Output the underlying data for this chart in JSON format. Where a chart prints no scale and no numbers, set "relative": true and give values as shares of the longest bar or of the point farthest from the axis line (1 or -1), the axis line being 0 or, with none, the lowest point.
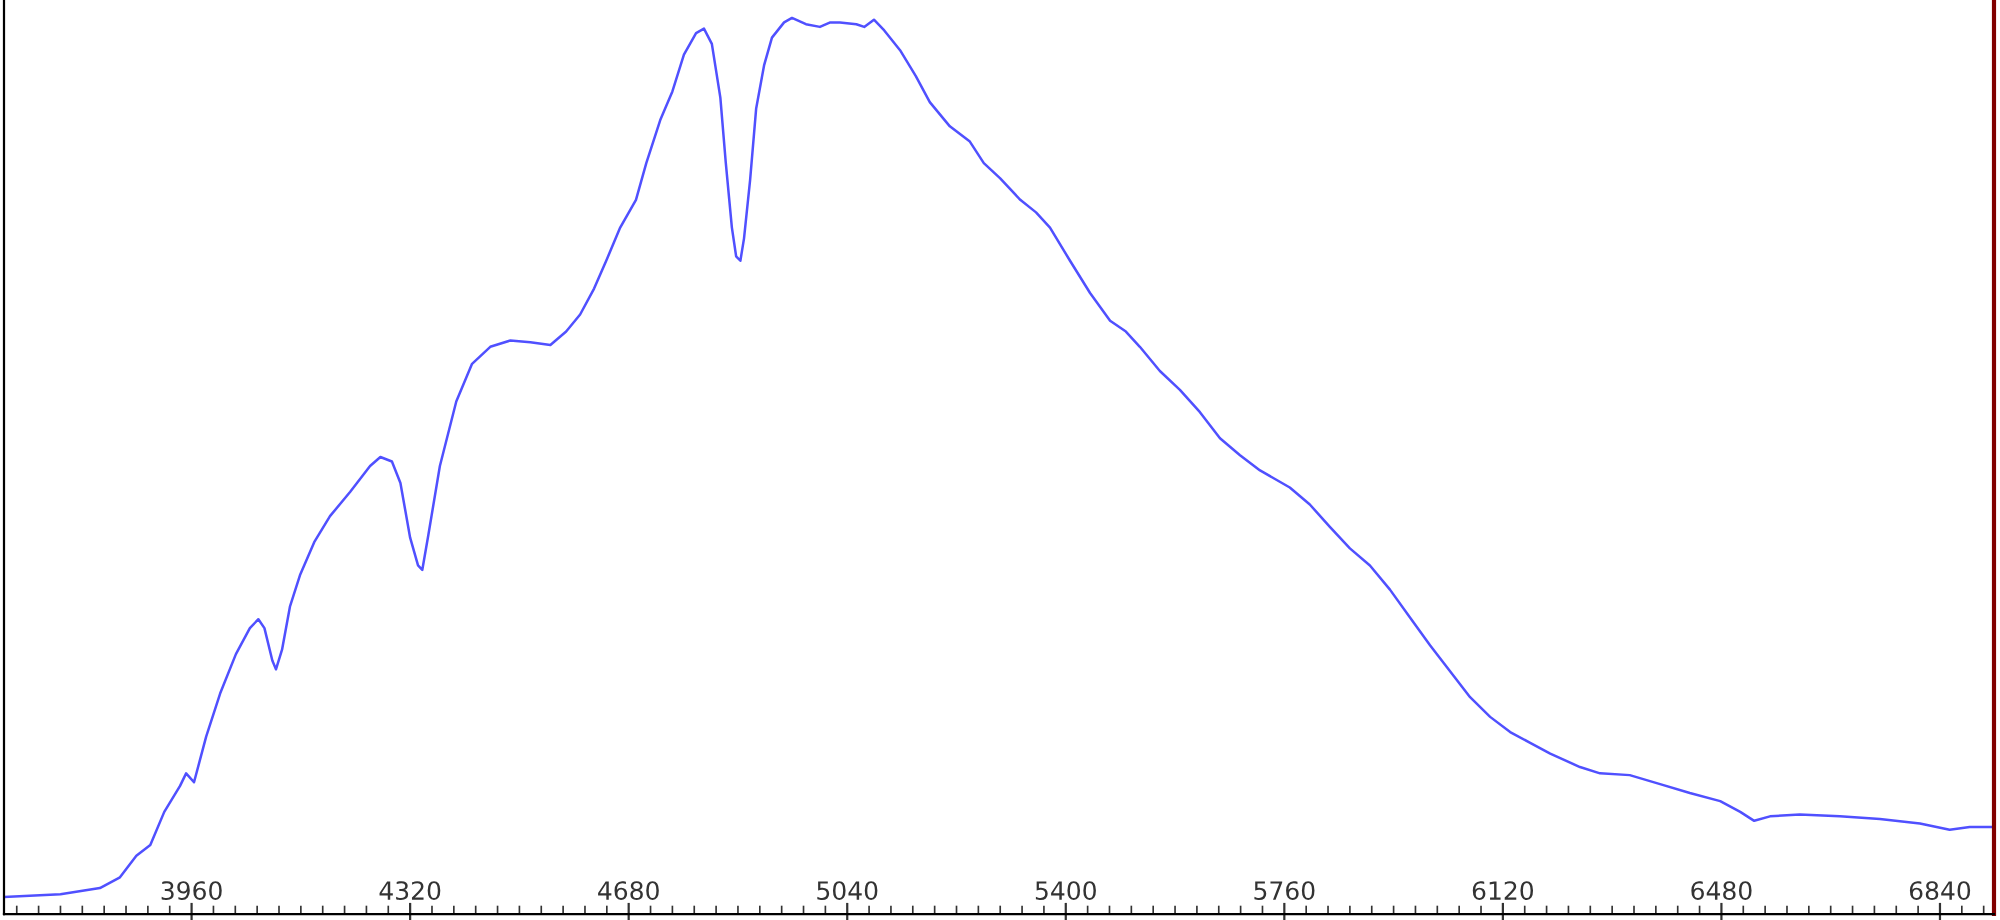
{
  "chart_data": {
    "type": "line",
    "relative": true,
    "xlim": [
      3651,
      6929
    ],
    "xticks": [
      3960,
      4320,
      4680,
      5040,
      5400,
      5760,
      6120,
      6480,
      6840
    ],
    "grid": false,
    "legend": false,
    "marker": "none",
    "line_style": "solid",
    "series": [
      {
        "color": "#5050ff",
        "x": [
          3651,
          3744,
          3809,
          3842,
          3869,
          3892,
          3915,
          3941,
          3951,
          3964,
          3984,
          4007,
          4033,
          4056,
          4070,
          4080,
          4093,
          4099,
          4109,
          4122,
          4139,
          4162,
          4188,
          4221,
          4254,
          4271,
          4290,
          4304,
          4320,
          4333,
          4340,
          4350,
          4369,
          4396,
          4422,
          4452,
          4485,
          4518,
          4551,
          4577,
          4600,
          4623,
          4643,
          4666,
          4692,
          4709,
          4732,
          4752,
          4771,
          4791,
          4804,
          4817,
          4831,
          4840,
          4850,
          4857,
          4864,
          4870,
          4880,
          4890,
          4903,
          4916,
          4936,
          4949,
          4972,
          4995,
          5012,
          5028,
          5055,
          5068,
          5084,
          5101,
          5127,
          5153,
          5176,
          5209,
          5242,
          5265,
          5292,
          5325,
          5351,
          5374,
          5407,
          5440,
          5473,
          5499,
          5522,
          5555,
          5588,
          5621,
          5654,
          5687,
          5720,
          5769,
          5802,
          5835,
          5868,
          5901,
          5934,
          5967,
          6000,
          6033,
          6066,
          6099,
          6132,
          6165,
          6198,
          6247,
          6280,
          6329,
          6379,
          6428,
          6478,
          6511,
          6534,
          6560,
          6609,
          6675,
          6741,
          6807,
          6856,
          6889,
          6929
        ],
        "values": [
          0.019,
          0.022,
          0.029,
          0.041,
          0.065,
          0.077,
          0.114,
          0.143,
          0.157,
          0.147,
          0.198,
          0.246,
          0.29,
          0.319,
          0.329,
          0.319,
          0.283,
          0.273,
          0.295,
          0.343,
          0.379,
          0.415,
          0.444,
          0.471,
          0.5,
          0.51,
          0.505,
          0.481,
          0.42,
          0.389,
          0.384,
          0.423,
          0.5,
          0.572,
          0.614,
          0.633,
          0.64,
          0.638,
          0.635,
          0.65,
          0.669,
          0.698,
          0.729,
          0.766,
          0.797,
          0.838,
          0.886,
          0.918,
          0.959,
          0.983,
          0.988,
          0.971,
          0.911,
          0.838,
          0.766,
          0.734,
          0.729,
          0.754,
          0.819,
          0.899,
          0.947,
          0.978,
          0.995,
          1,
          0.993,
          0.99,
          0.995,
          0.995,
          0.993,
          0.99,
          0.998,
          0.986,
          0.964,
          0.935,
          0.906,
          0.879,
          0.862,
          0.838,
          0.821,
          0.797,
          0.783,
          0.766,
          0.729,
          0.693,
          0.662,
          0.65,
          0.633,
          0.606,
          0.585,
          0.56,
          0.531,
          0.512,
          0.495,
          0.476,
          0.457,
          0.432,
          0.408,
          0.389,
          0.362,
          0.331,
          0.3,
          0.271,
          0.242,
          0.22,
          0.203,
          0.191,
          0.179,
          0.164,
          0.157,
          0.155,
          0.145,
          0.135,
          0.126,
          0.114,
          0.104,
          0.109,
          0.111,
          0.109,
          0.106,
          0.101,
          0.094,
          0.097,
          0.097
        ]
      }
    ]
  }
}
